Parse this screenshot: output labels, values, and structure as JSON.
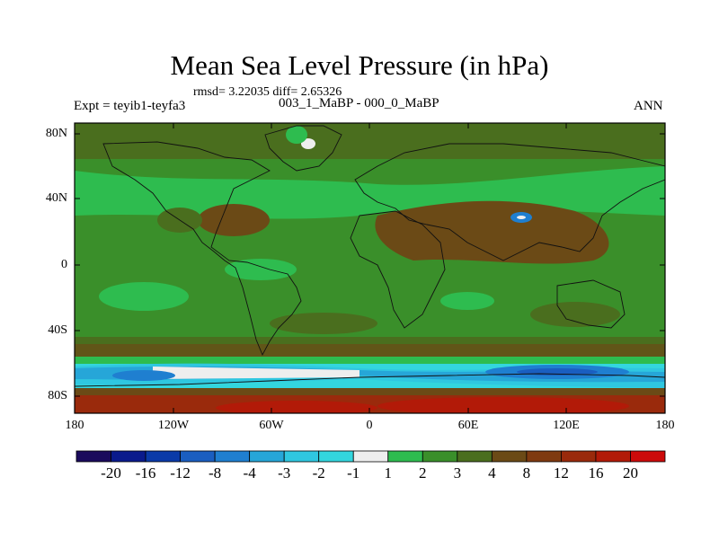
{
  "title": "Mean Sea Level Pressure (in hPa)",
  "stats_line": "rmsd= 3.22035 diff= 2.65326",
  "experiment_label": "Expt = teyib1-teyfa3",
  "subtitle": "003_1_MaBP - 000_0_MaBP",
  "season": "ANN",
  "lat_ticks": [
    "80N",
    "40N",
    "0",
    "40S",
    "80S"
  ],
  "lon_ticks": [
    "180",
    "120W",
    "60W",
    "0",
    "60E",
    "120E",
    "180"
  ],
  "colorbar": {
    "labels": [
      "-20",
      "-16",
      "-12",
      "-8",
      "-4",
      "-3",
      "-2",
      "-1",
      "1",
      "2",
      "3",
      "4",
      "8",
      "12",
      "16",
      "20"
    ],
    "colors": [
      "#1a0a5c",
      "#0a1a8c",
      "#0a3aa8",
      "#1a5ec0",
      "#1f7fd0",
      "#26a6d8",
      "#2fc7e0",
      "#33d6de",
      "#eeeeee",
      "#2ebc4f",
      "#3a8f2a",
      "#4a6e1e",
      "#6b4a16",
      "#7f3a10",
      "#9a2a0c",
      "#b21a08",
      "#cc0a0a"
    ]
  }
}
